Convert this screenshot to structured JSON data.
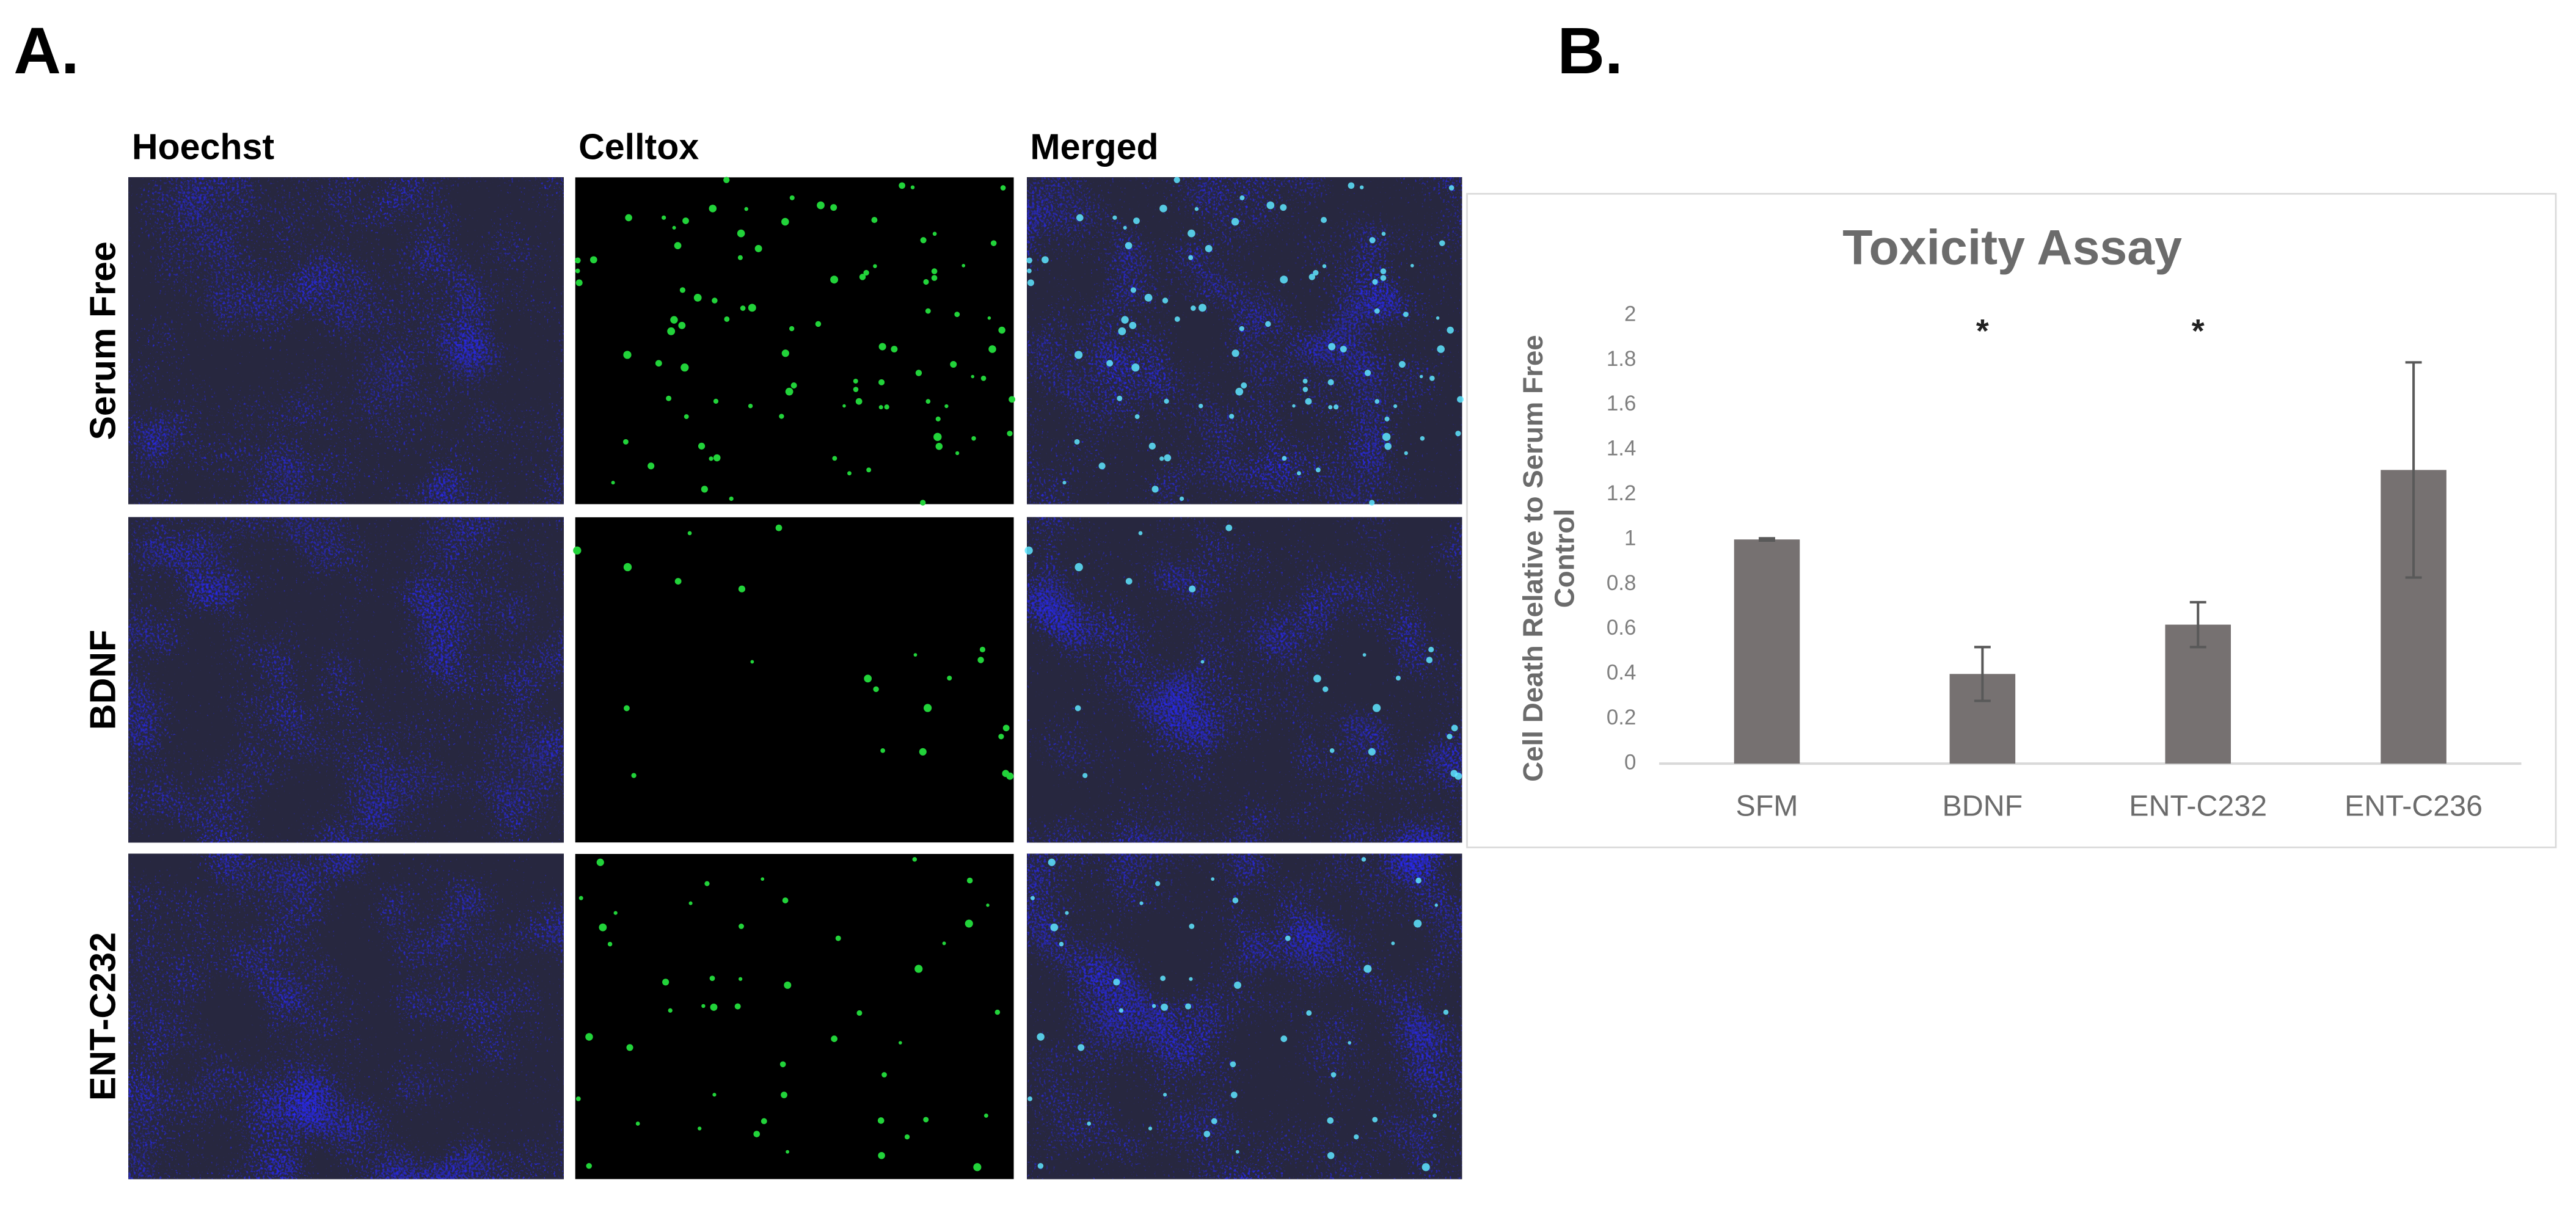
{
  "panel_labels": [
    "A.",
    "B."
  ],
  "image_panel": {
    "columns": [
      "Hoechst",
      "Celltox",
      "Merged"
    ],
    "rows": [
      "Serum Free",
      "BDNF",
      "ENT-C232"
    ]
  },
  "chart_data": {
    "type": "bar",
    "title": "Toxicity Assay",
    "y_label": "Cell Death Relative to Serum Free Control",
    "categories": [
      "SFM",
      "BDNF",
      "ENT-C232",
      "ENT-C236"
    ],
    "values": [
      1,
      0.4,
      0.62,
      1.31
    ],
    "errors": [
      0.005,
      0.12,
      0.1,
      0.48
    ],
    "significance": [
      null,
      "*",
      "*",
      null
    ],
    "color": "#767171",
    "ylim": [
      0,
      2
    ],
    "yticks": [
      0,
      0.2,
      0.4,
      0.6,
      0.8,
      1,
      1.2,
      1.4,
      1.6,
      1.8,
      2
    ],
    "grid": false
  }
}
